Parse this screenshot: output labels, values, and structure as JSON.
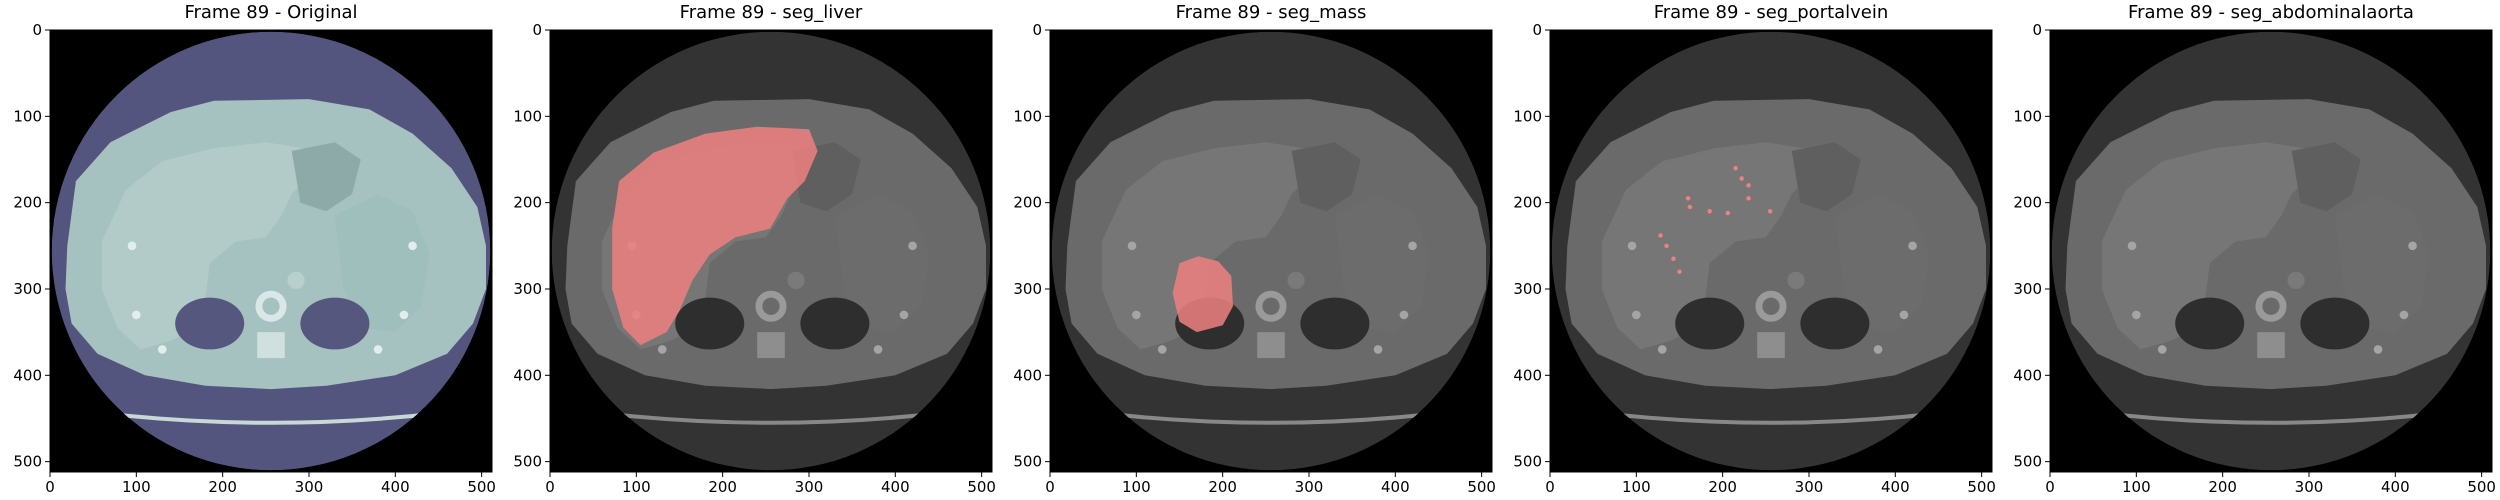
{
  "panels": [
    {
      "title": "Frame 89 - Original",
      "mode": "original"
    },
    {
      "title": "Frame 89 - seg_liver",
      "mode": "liver"
    },
    {
      "title": "Frame 89 - seg_mass",
      "mode": "mass"
    },
    {
      "title": "Frame 89 - seg_portalvein",
      "mode": "portalvein"
    },
    {
      "title": "Frame 89 - seg_abdominalaorta",
      "mode": "aorta"
    }
  ],
  "axes": {
    "xlim": [
      0,
      512
    ],
    "ylim": [
      0,
      512
    ],
    "xticks": [
      0,
      100,
      200,
      300,
      400,
      500
    ],
    "yticks": [
      0,
      100,
      200,
      300,
      400,
      500
    ]
  },
  "colors": {
    "overlay": "#f08080",
    "tint": "#8a8ec8",
    "gray": "#6e6e6e"
  }
}
